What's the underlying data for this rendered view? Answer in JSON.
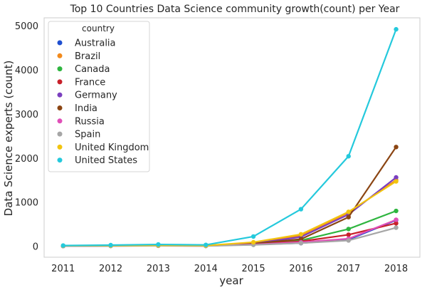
{
  "chart_data": {
    "type": "line",
    "title": "Top 10 Countries Data Science community growth(count) per Year",
    "xlabel": "year",
    "ylabel": "Data Science experts (count)",
    "x": [
      2011,
      2012,
      2013,
      2014,
      2015,
      2016,
      2017,
      2018
    ],
    "xlim": [
      2010.6,
      2018.5
    ],
    "ylim": [
      -250,
      5180
    ],
    "yticks": [
      0,
      1000,
      2000,
      3000,
      4000,
      5000
    ],
    "grid": true,
    "legend_title": "country",
    "legend_position": "upper-left",
    "series": [
      {
        "name": "Australia",
        "color": "#1f4fd0",
        "values": [
          5,
          8,
          12,
          8,
          40,
          70,
          150,
          590
        ]
      },
      {
        "name": "Brazil",
        "color": "#f28a1c",
        "values": [
          5,
          10,
          12,
          10,
          60,
          240,
          760,
          1500
        ]
      },
      {
        "name": "Canada",
        "color": "#2eb53f",
        "values": [
          8,
          12,
          15,
          10,
          50,
          130,
          390,
          800
        ]
      },
      {
        "name": "France",
        "color": "#c8202a",
        "values": [
          5,
          10,
          12,
          8,
          45,
          110,
          260,
          520
        ]
      },
      {
        "name": "Germany",
        "color": "#7b3fbf",
        "values": [
          6,
          10,
          14,
          10,
          60,
          210,
          720,
          1560
        ]
      },
      {
        "name": "India",
        "color": "#8b4513",
        "values": [
          8,
          15,
          20,
          12,
          60,
          160,
          660,
          2250
        ]
      },
      {
        "name": "Russia",
        "color": "#e04fb8",
        "values": [
          4,
          8,
          10,
          8,
          40,
          90,
          170,
          600
        ]
      },
      {
        "name": "Spain",
        "color": "#a6a6a6",
        "values": [
          4,
          6,
          10,
          6,
          30,
          70,
          130,
          420
        ]
      },
      {
        "name": "United Kingdom",
        "color": "#f2c40f",
        "values": [
          10,
          15,
          20,
          15,
          90,
          270,
          780,
          1470
        ]
      },
      {
        "name": "United States",
        "color": "#24c9dc",
        "values": [
          15,
          25,
          40,
          30,
          220,
          840,
          2040,
          4920
        ]
      }
    ]
  }
}
